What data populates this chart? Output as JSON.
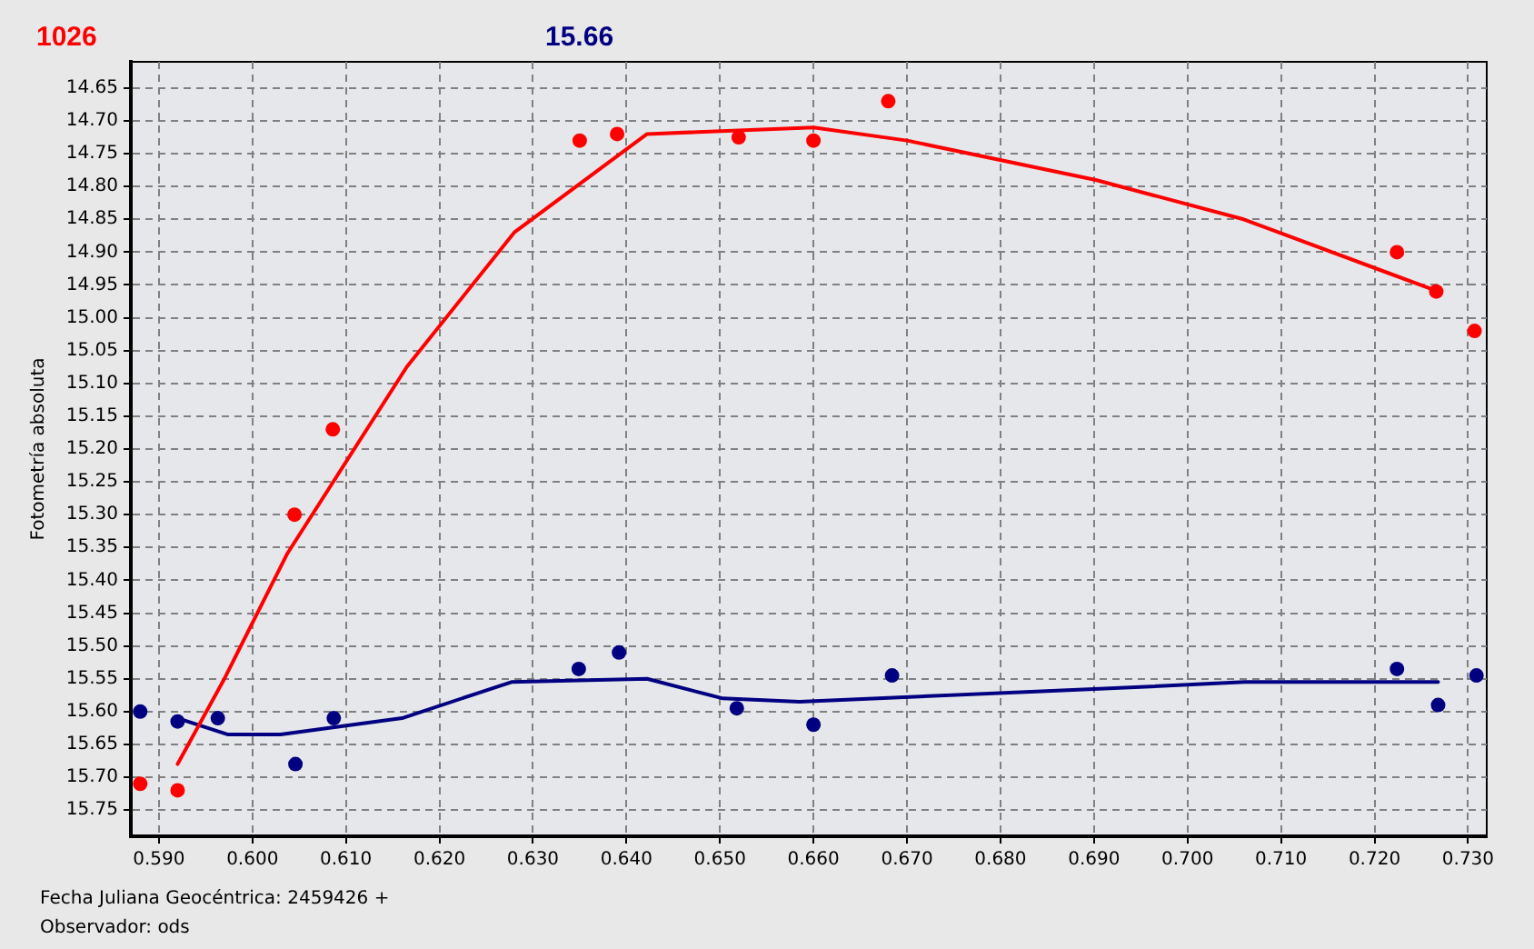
{
  "chart_data": {
    "type": "scatter",
    "ylabel": "Fotometría absoluta",
    "xlabel": "Fecha Juliana Geocéntrica: 2459426 +",
    "annotations": [
      "Observador: ods"
    ],
    "xlim": [
      0.587,
      0.732
    ],
    "xticks": [
      {
        "value": 0.59,
        "label": "0.590"
      },
      {
        "value": 0.6,
        "label": "0.600"
      },
      {
        "value": 0.61,
        "label": "0.610"
      },
      {
        "value": 0.62,
        "label": "0.620"
      },
      {
        "value": 0.63,
        "label": "0.630"
      },
      {
        "value": 0.64,
        "label": "0.640"
      },
      {
        "value": 0.65,
        "label": "0.650"
      },
      {
        "value": 0.66,
        "label": "0.660"
      },
      {
        "value": 0.67,
        "label": "0.670"
      },
      {
        "value": 0.68,
        "label": "0.680"
      },
      {
        "value": 0.69,
        "label": "0.690"
      },
      {
        "value": 0.7,
        "label": "0.700"
      },
      {
        "value": 0.71,
        "label": "0.710"
      },
      {
        "value": 0.72,
        "label": "0.720"
      },
      {
        "value": 0.73,
        "label": "0.730"
      }
    ],
    "ylim": [
      15.79,
      14.61
    ],
    "yticks": [
      14.65,
      {
        "value": 14.7,
        "label": "14.70"
      },
      14.75,
      {
        "value": 14.8,
        "label": "14.80"
      },
      14.85,
      {
        "value": 14.9,
        "label": "14.90"
      },
      14.95,
      {
        "value": 15.0,
        "label": "15.00"
      },
      15.05,
      {
        "value": 15.1,
        "label": "15.10"
      },
      15.15,
      {
        "value": 15.2,
        "label": "15.20"
      },
      15.25,
      {
        "value": 15.3,
        "label": "15.30"
      },
      15.35,
      {
        "value": 15.4,
        "label": "15.40"
      },
      15.45,
      {
        "value": 15.5,
        "label": "15.50"
      },
      15.55,
      {
        "value": 15.6,
        "label": "15.60"
      },
      15.65,
      {
        "value": 15.7,
        "label": "15.70"
      },
      15.75
    ],
    "grid": true,
    "series": [
      {
        "name": "1026",
        "type": "scatter",
        "marker": "circle",
        "color": "#ff0000",
        "x": [
          0.588,
          0.592,
          0.6045,
          0.6086,
          0.635,
          0.639,
          0.652,
          0.66,
          0.668,
          0.7224,
          0.7266,
          0.7307
        ],
        "values": [
          15.71,
          15.72,
          15.3,
          15.17,
          14.73,
          14.72,
          14.725,
          14.73,
          14.67,
          14.9,
          14.96,
          15.02
        ]
      },
      {
        "type": "line",
        "marker": "none",
        "color": "#ff0000",
        "x": [
          0.592,
          0.597,
          0.6037,
          0.6165,
          0.628,
          0.6422,
          0.66,
          0.67,
          0.6902,
          0.706,
          0.7268
        ],
        "values": [
          15.68,
          15.55,
          15.36,
          15.075,
          14.87,
          14.72,
          14.71,
          14.73,
          14.79,
          14.85,
          14.96
        ]
      },
      {
        "name": "15.66",
        "type": "scatter",
        "marker": "circle",
        "color": "#000080",
        "x": [
          0.588,
          0.592,
          0.5963,
          0.6046,
          0.6087,
          0.6349,
          0.6392,
          0.6518,
          0.66,
          0.6684,
          0.7224,
          0.7268,
          0.7309
        ],
        "values": [
          15.6,
          15.615,
          15.61,
          15.68,
          15.61,
          15.535,
          15.51,
          15.595,
          15.62,
          15.545,
          15.535,
          15.59,
          15.545
        ]
      },
      {
        "type": "line",
        "marker": "none",
        "color": "#000080",
        "x": [
          0.592,
          0.5974,
          0.603,
          0.616,
          0.6277,
          0.6422,
          0.6503,
          0.6585,
          0.6911,
          0.7061,
          0.7268
        ],
        "values": [
          15.61,
          15.635,
          15.635,
          15.61,
          15.555,
          15.55,
          15.58,
          15.585,
          15.565,
          15.555,
          15.555
        ]
      }
    ]
  }
}
